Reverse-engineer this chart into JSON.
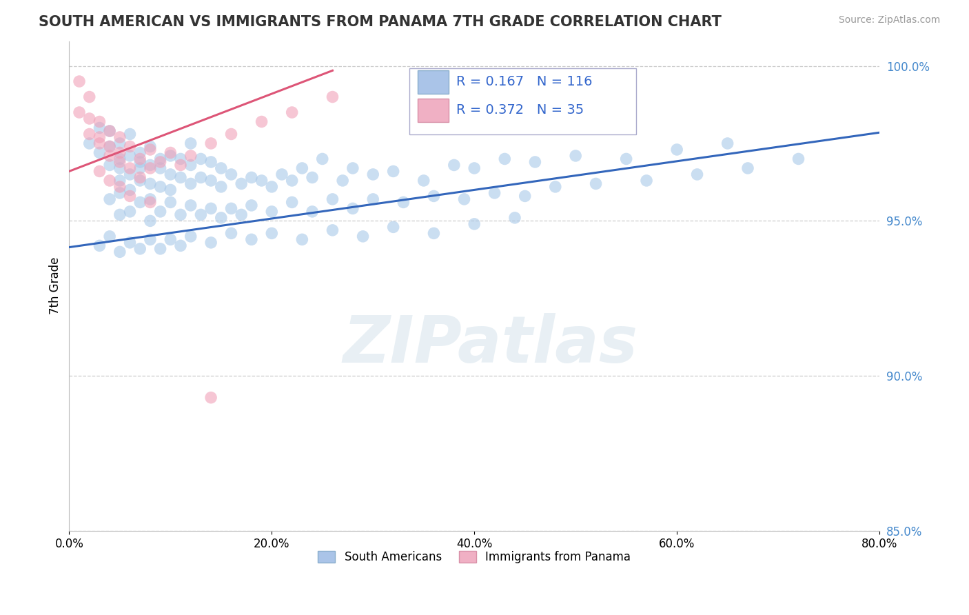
{
  "title": "SOUTH AMERICAN VS IMMIGRANTS FROM PANAMA 7TH GRADE CORRELATION CHART",
  "source": "Source: ZipAtlas.com",
  "ylabel": "7th Grade",
  "watermark": "ZIPatlas",
  "r_blue": 0.167,
  "n_blue": 116,
  "r_pink": 0.372,
  "n_pink": 35,
  "blue_color": "#a8c8e8",
  "pink_color": "#f0a0b8",
  "trend_blue": "#3366bb",
  "trend_pink": "#dd5577",
  "xlim": [
    0.0,
    0.8
  ],
  "ylim": [
    0.928,
    1.008
  ],
  "yticks": [
    0.85,
    0.9,
    0.95,
    1.0
  ],
  "ytick_labels": [
    "85.0%",
    "90.0%",
    "95.0%",
    "100.0%"
  ],
  "xticks": [
    0.0,
    0.2,
    0.4,
    0.6,
    0.8
  ],
  "xtick_labels": [
    "0.0%",
    "20.0%",
    "40.0%",
    "60.0%",
    "80.0%"
  ],
  "blue_trendline_x": [
    0.0,
    0.8
  ],
  "blue_trendline_y": [
    0.9415,
    0.9785
  ],
  "pink_trendline_x": [
    0.0,
    0.26
  ],
  "pink_trendline_y": [
    0.966,
    0.9985
  ],
  "blue_scatter_x": [
    0.02,
    0.03,
    0.03,
    0.04,
    0.04,
    0.04,
    0.05,
    0.05,
    0.05,
    0.05,
    0.06,
    0.06,
    0.06,
    0.07,
    0.07,
    0.07,
    0.07,
    0.08,
    0.08,
    0.08,
    0.09,
    0.09,
    0.09,
    0.1,
    0.1,
    0.1,
    0.11,
    0.11,
    0.12,
    0.12,
    0.12,
    0.13,
    0.13,
    0.14,
    0.14,
    0.15,
    0.15,
    0.16,
    0.17,
    0.18,
    0.19,
    0.2,
    0.21,
    0.22,
    0.23,
    0.24,
    0.25,
    0.27,
    0.28,
    0.3,
    0.32,
    0.35,
    0.38,
    0.4,
    0.43,
    0.46,
    0.5,
    0.55,
    0.6,
    0.65,
    0.04,
    0.05,
    0.05,
    0.06,
    0.06,
    0.07,
    0.08,
    0.08,
    0.09,
    0.1,
    0.11,
    0.12,
    0.13,
    0.14,
    0.15,
    0.16,
    0.17,
    0.18,
    0.2,
    0.22,
    0.24,
    0.26,
    0.28,
    0.3,
    0.33,
    0.36,
    0.39,
    0.42,
    0.45,
    0.48,
    0.52,
    0.57,
    0.62,
    0.67,
    0.72,
    0.03,
    0.04,
    0.05,
    0.06,
    0.07,
    0.08,
    0.09,
    0.1,
    0.11,
    0.12,
    0.14,
    0.16,
    0.18,
    0.2,
    0.23,
    0.26,
    0.29,
    0.32,
    0.36,
    0.4,
    0.44
  ],
  "blue_scatter_y": [
    0.975,
    0.972,
    0.98,
    0.968,
    0.974,
    0.979,
    0.963,
    0.97,
    0.975,
    0.967,
    0.971,
    0.965,
    0.978,
    0.969,
    0.963,
    0.972,
    0.967,
    0.968,
    0.962,
    0.974,
    0.967,
    0.961,
    0.97,
    0.965,
    0.96,
    0.971,
    0.964,
    0.97,
    0.962,
    0.968,
    0.975,
    0.964,
    0.97,
    0.963,
    0.969,
    0.961,
    0.967,
    0.965,
    0.962,
    0.964,
    0.963,
    0.961,
    0.965,
    0.963,
    0.967,
    0.964,
    0.97,
    0.963,
    0.967,
    0.965,
    0.966,
    0.963,
    0.968,
    0.967,
    0.97,
    0.969,
    0.971,
    0.97,
    0.973,
    0.975,
    0.957,
    0.952,
    0.959,
    0.953,
    0.96,
    0.956,
    0.95,
    0.957,
    0.953,
    0.956,
    0.952,
    0.955,
    0.952,
    0.954,
    0.951,
    0.954,
    0.952,
    0.955,
    0.953,
    0.956,
    0.953,
    0.957,
    0.954,
    0.957,
    0.956,
    0.958,
    0.957,
    0.959,
    0.958,
    0.961,
    0.962,
    0.963,
    0.965,
    0.967,
    0.97,
    0.942,
    0.945,
    0.94,
    0.943,
    0.941,
    0.944,
    0.941,
    0.944,
    0.942,
    0.945,
    0.943,
    0.946,
    0.944,
    0.946,
    0.944,
    0.947,
    0.945,
    0.948,
    0.946,
    0.949,
    0.951
  ],
  "pink_scatter_x": [
    0.01,
    0.01,
    0.02,
    0.02,
    0.02,
    0.03,
    0.03,
    0.03,
    0.04,
    0.04,
    0.04,
    0.05,
    0.05,
    0.05,
    0.06,
    0.06,
    0.07,
    0.07,
    0.08,
    0.08,
    0.09,
    0.1,
    0.11,
    0.12,
    0.14,
    0.16,
    0.19,
    0.22,
    0.26,
    0.14,
    0.03,
    0.04,
    0.05,
    0.06,
    0.08
  ],
  "pink_scatter_y": [
    0.995,
    0.985,
    0.99,
    0.978,
    0.983,
    0.975,
    0.982,
    0.977,
    0.971,
    0.979,
    0.974,
    0.969,
    0.977,
    0.972,
    0.967,
    0.974,
    0.97,
    0.964,
    0.967,
    0.973,
    0.969,
    0.972,
    0.968,
    0.971,
    0.975,
    0.978,
    0.982,
    0.985,
    0.99,
    0.893,
    0.966,
    0.963,
    0.961,
    0.958,
    0.956
  ]
}
